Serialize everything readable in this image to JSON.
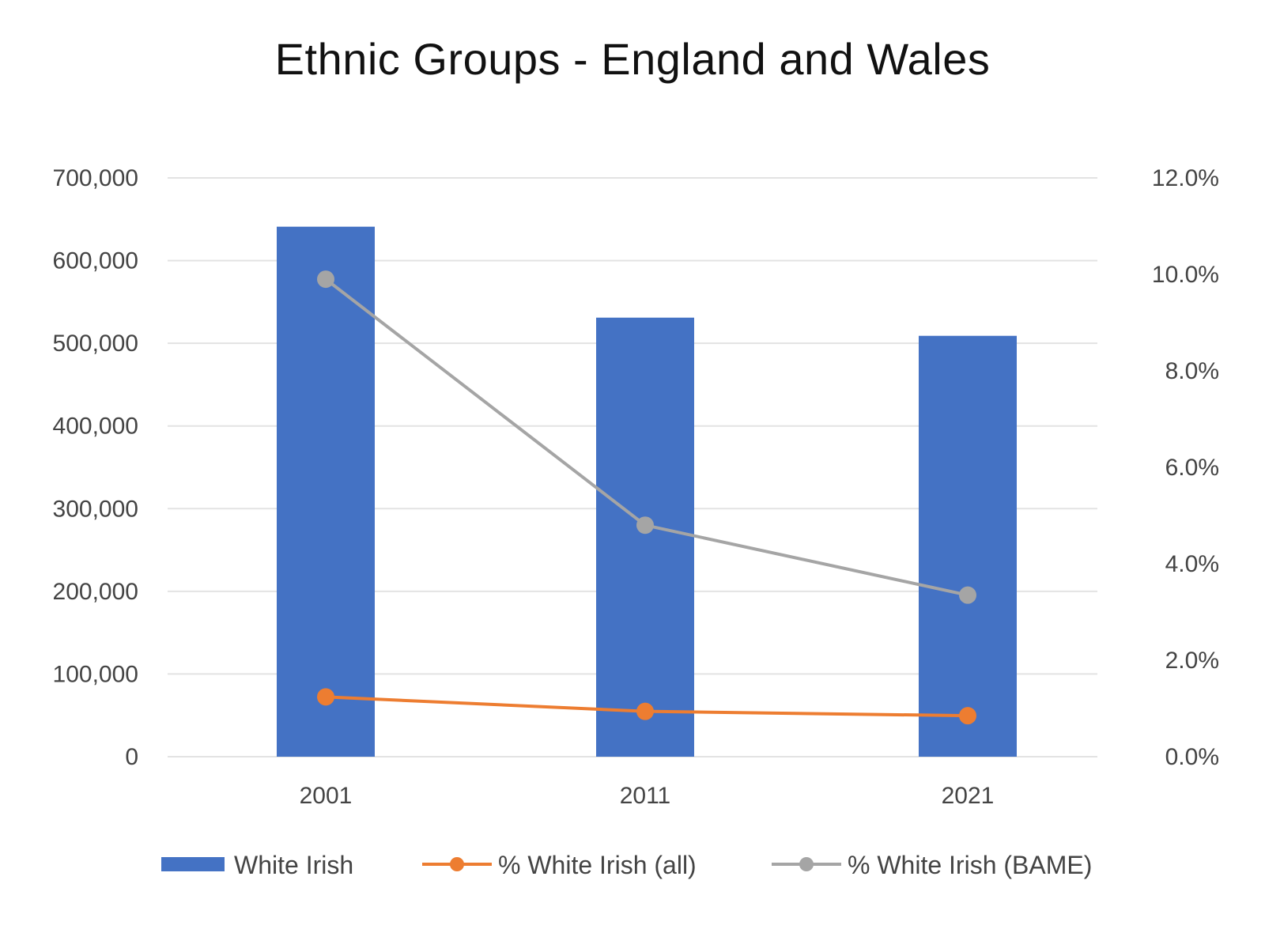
{
  "chart_data": {
    "type": "bar",
    "title": "Ethnic Groups - England and Wales",
    "categories": [
      "2001",
      "2011",
      "2021"
    ],
    "series": [
      {
        "name": "White Irish",
        "type": "bar",
        "axis": "left",
        "values": [
          641000,
          531000,
          509000
        ],
        "color": "#4472C4"
      },
      {
        "name": "% White Irish (all)",
        "type": "line",
        "axis": "right",
        "values": [
          0.0124,
          0.0094,
          0.0085
        ],
        "color": "#ED7D31"
      },
      {
        "name": "% White Irish (BAME)",
        "type": "line",
        "axis": "right",
        "values": [
          0.099,
          0.048,
          0.0335
        ],
        "color": "#A5A5A5"
      }
    ],
    "y_left": {
      "ylim": [
        0,
        700000
      ],
      "ticks": [
        0,
        100000,
        200000,
        300000,
        400000,
        500000,
        600000,
        700000
      ],
      "tick_labels": [
        "0",
        "100,000",
        "200,000",
        "300,000",
        "400,000",
        "500,000",
        "600,000",
        "700,000"
      ]
    },
    "y_right": {
      "ylim": [
        0,
        0.12
      ],
      "ticks": [
        0,
        0.02,
        0.04,
        0.06,
        0.08,
        0.1,
        0.12
      ],
      "tick_labels": [
        "0.0%",
        "2.0%",
        "4.0%",
        "6.0%",
        "8.0%",
        "10.0%",
        "12.0%"
      ]
    },
    "grid": true,
    "legend_position": "bottom"
  }
}
